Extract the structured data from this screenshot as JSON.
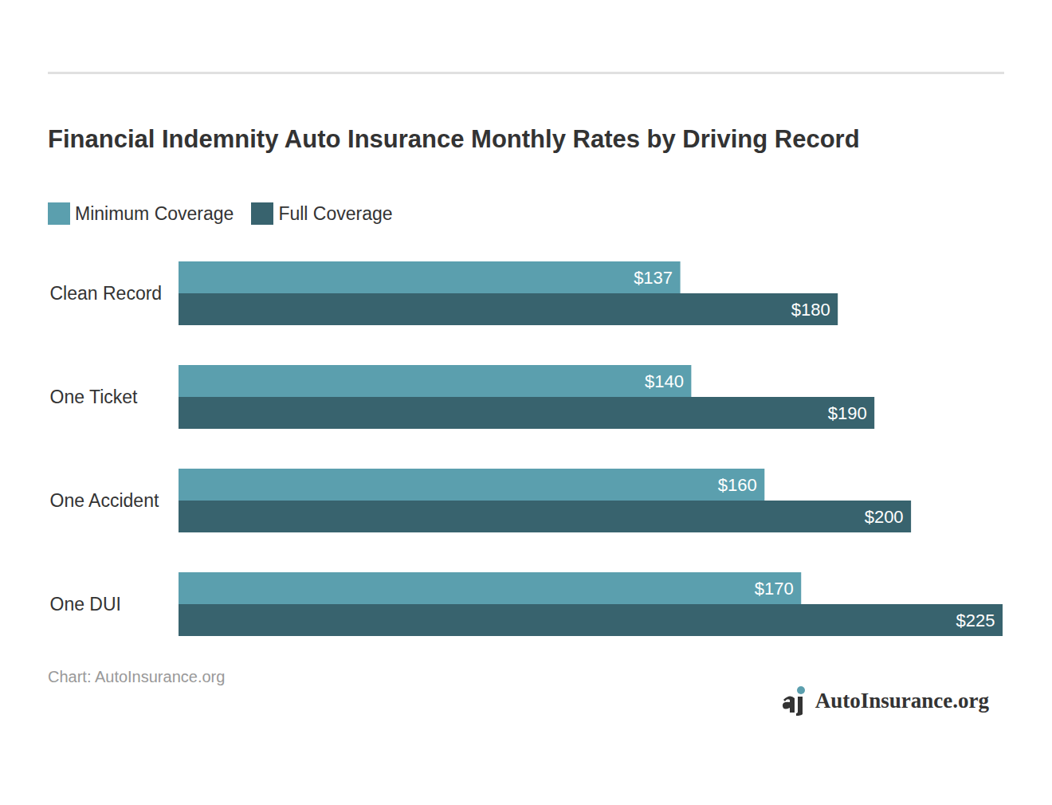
{
  "chart_data": {
    "type": "bar",
    "orientation": "horizontal",
    "title": "Financial Indemnity Auto Insurance Monthly Rates by Driving Record",
    "categories": [
      "Clean Record",
      "One Ticket",
      "One Accident",
      "One DUI"
    ],
    "series": [
      {
        "name": "Minimum Coverage",
        "color": "#5b9fae",
        "values": [
          137,
          140,
          160,
          170
        ],
        "value_labels": [
          "$137",
          "$140",
          "$160",
          "$170"
        ]
      },
      {
        "name": "Full Coverage",
        "color": "#38636e",
        "values": [
          180,
          190,
          200,
          225
        ],
        "value_labels": [
          "$180",
          "$190",
          "$200",
          "$225"
        ]
      }
    ],
    "xlim": [
      0,
      225
    ],
    "data_labels": true,
    "tick_labels": "y",
    "grid": false,
    "legend": "top-left",
    "caption": "Chart: AutoInsurance.org",
    "logo_text": "AutoInsurance.org"
  }
}
